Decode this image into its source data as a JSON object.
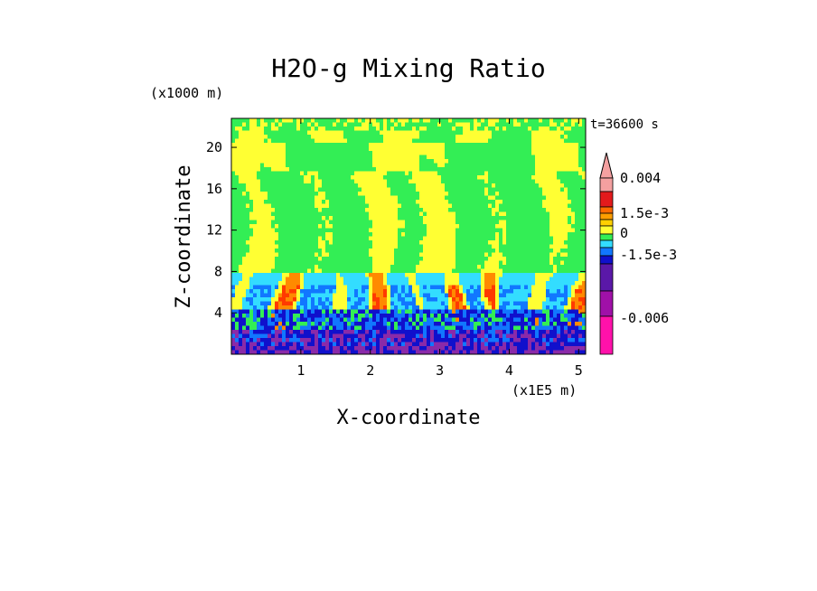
{
  "chart_data": {
    "type": "heatmap",
    "title": "H2O-g Mixing Ratio",
    "xlabel": "X-coordinate",
    "ylabel": "Z-coordinate",
    "x_scale_label": "(x1E5 m)",
    "y_scale_label": "(x1000 m)",
    "time_label": "t=36600 s",
    "xlim": [
      0,
      5.1
    ],
    "ylim": [
      0,
      22.8
    ],
    "x_ticks": [
      1,
      2,
      3,
      4,
      5
    ],
    "x_tick_labels": [
      "1",
      "2",
      "3",
      "4",
      "5"
    ],
    "y_ticks": [
      4,
      8,
      12,
      16,
      20
    ],
    "y_tick_labels": [
      "4",
      "8",
      "12",
      "16",
      "20"
    ],
    "grid": false,
    "colorbar": {
      "levels": [
        "0.004",
        "1.5e-3",
        "0",
        "-1.5e-3",
        "-0.006"
      ],
      "colors_top_to_bottom": [
        "#f4a0a0",
        "#e31a1c",
        "#ff6a00",
        "#ff9e00",
        "#ffd000",
        "#ffff33",
        "#33ee55",
        "#33ddff",
        "#1177ff",
        "#1010cc",
        "#5a18a8",
        "#a010a8",
        "#ff11aa"
      ],
      "extend": "max"
    },
    "palette": {
      "yellow": "#ffff33",
      "green": "#33ee55",
      "cyan": "#33ddff",
      "blue": "#1177ff",
      "darkblue": "#1010cc",
      "purple": "#8a2aa8",
      "orange": "#ff8a00",
      "red": "#ff3a00"
    }
  }
}
